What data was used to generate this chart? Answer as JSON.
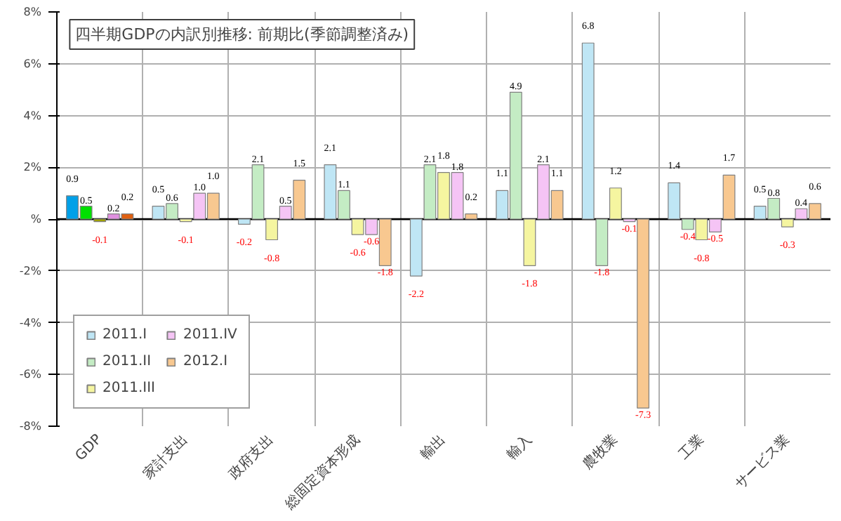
{
  "chart_data": {
    "type": "bar",
    "title": "四半期GDPの内訳別推移: 前期比(季節調整済み)",
    "categories": [
      "GDP",
      "家計支出",
      "政府支出",
      "総固定資本形成",
      "輸出",
      "輸入",
      "農牧業",
      "工業",
      "サービス業"
    ],
    "series": [
      {
        "name": "2011.I",
        "color": "#bfe6f5",
        "colors": [
          "#00a0e8",
          "#bfe6f5",
          "#bfe6f5",
          "#bfe6f5",
          "#bfe6f5",
          "#bfe6f5",
          "#bfe6f5",
          "#bfe6f5",
          "#bfe6f5"
        ],
        "values": [
          0.9,
          0.5,
          -0.2,
          2.1,
          -2.2,
          1.1,
          6.8,
          1.4,
          0.5
        ],
        "value_labels": [
          "0.9",
          "0.5",
          "-0.2",
          "2.1",
          "-2.2",
          "1.1",
          "6.8",
          "1.4",
          "0.5"
        ]
      },
      {
        "name": "2011.II",
        "color": "#c4ecc4",
        "colors": [
          "#00e000",
          "#c4ecc4",
          "#c4ecc4",
          "#c4ecc4",
          "#c4ecc4",
          "#c4ecc4",
          "#c4ecc4",
          "#c4ecc4",
          "#c4ecc4"
        ],
        "values": [
          0.5,
          0.6,
          2.1,
          1.1,
          2.1,
          4.9,
          -1.8,
          -0.4,
          0.8
        ],
        "value_labels": [
          "0.5",
          "0.6",
          "2.1",
          "1.1",
          "2.1",
          "4.9",
          "-1.8",
          "-0.4",
          "0.8"
        ]
      },
      {
        "name": "2011.III",
        "color": "#f5f5a0",
        "colors": [
          "#a0a000",
          "#f5f5a0",
          "#f5f5a0",
          "#f5f5a0",
          "#f5f5a0",
          "#f5f5a0",
          "#f5f5a0",
          "#f5f5a0",
          "#f5f5a0"
        ],
        "values": [
          -0.1,
          -0.1,
          -0.8,
          -0.6,
          1.8,
          -1.8,
          1.2,
          -0.8,
          -0.3
        ],
        "value_labels": [
          "-0.1",
          "-0.1",
          "-0.8",
          "-0.6",
          "1.8",
          "-1.8",
          "1.2",
          "-0.8",
          "-0.3"
        ]
      },
      {
        "name": "2011.IV",
        "color": "#f5c4f5",
        "colors": [
          "#e090e0",
          "#f5c4f5",
          "#f5c4f5",
          "#f5c4f5",
          "#f5c4f5",
          "#f5c4f5",
          "#f5c4f5",
          "#f5c4f5",
          "#f5c4f5"
        ],
        "values": [
          0.2,
          1.0,
          0.5,
          -0.6,
          1.8,
          2.1,
          -0.1,
          -0.5,
          0.4
        ],
        "value_labels": [
          "0.2",
          "1.0",
          "0.5",
          "-0.6",
          "1.8",
          "2.1",
          "-0.1",
          "-0.5",
          "0.4"
        ]
      },
      {
        "name": "2012.I",
        "color": "#f8c890",
        "colors": [
          "#e06010",
          "#f8c890",
          "#f8c890",
          "#f8c890",
          "#f8c890",
          "#f8c890",
          "#f8c890",
          "#f8c890",
          "#f8c890"
        ],
        "values": [
          0.2,
          1.0,
          1.5,
          -1.8,
          0.2,
          1.1,
          -7.3,
          1.7,
          0.6
        ],
        "value_labels": [
          "0.2",
          "1.0",
          "1.5",
          "-1.8",
          "0.2",
          "1.1",
          "-7.3",
          "1.7",
          "0.6"
        ]
      }
    ],
    "ylim": [
      -8,
      8
    ],
    "yticks": [
      {
        "value": -8,
        "label": "-8%"
      },
      {
        "value": -6,
        "label": "-6%"
      },
      {
        "value": -4,
        "label": "-4%"
      },
      {
        "value": -2,
        "label": "-2%"
      },
      {
        "value": 0,
        "label": "%"
      },
      {
        "value": 2,
        "label": "2%"
      },
      {
        "value": 4,
        "label": "4%"
      },
      {
        "value": 6,
        "label": "6%"
      },
      {
        "value": 8,
        "label": "8%"
      }
    ],
    "grid": true,
    "legend": "bottom left"
  }
}
